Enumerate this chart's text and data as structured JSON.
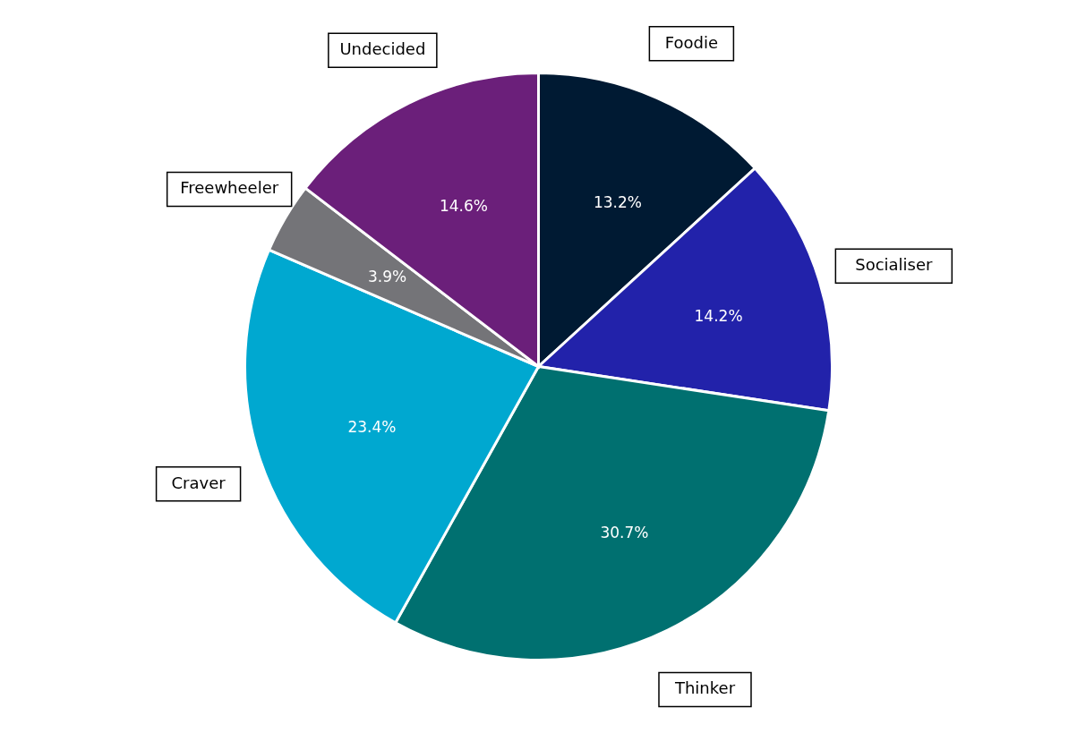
{
  "chart_data": {
    "type": "pie",
    "categories": [
      "Foodie",
      "Socialiser",
      "Thinker",
      "Craver",
      "Freewheeler",
      "Undecided"
    ],
    "values": [
      13.2,
      14.2,
      30.7,
      23.4,
      3.9,
      14.6
    ],
    "colors": [
      "#001a33",
      "#2222aa",
      "#007070",
      "#00a8d0",
      "#747478",
      "#6b1f7a"
    ],
    "value_labels": [
      "13.2%",
      "14.2%",
      "30.7%",
      "23.4%",
      "3.9%",
      "14.6%"
    ]
  }
}
